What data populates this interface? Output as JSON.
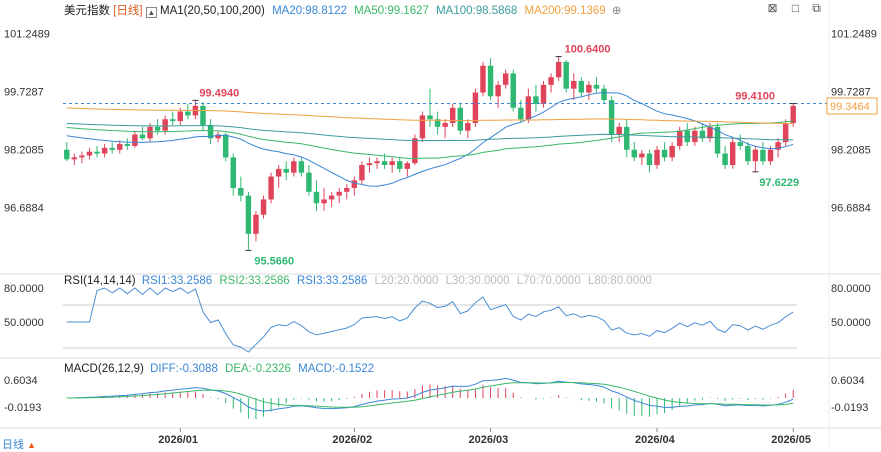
{
  "header": {
    "name": "美元指数",
    "period": "[日线]",
    "ma_label": "MA1(20,50,100,200)",
    "ma20": "MA20:98.8122",
    "ma50": "MA50:99.1627",
    "ma100": "MA100:98.5868",
    "ma200": "MA200:99.1369"
  },
  "colors": {
    "up": "#e0445a",
    "down": "#2eb872",
    "ma20": "#3a86d6",
    "ma50": "#3bb86a",
    "ma100": "#3a9a9a",
    "ma200": "#f0a040",
    "rsi": "#4d8fd6",
    "dif": "#3a86d6",
    "dea": "#3bb86a"
  },
  "icons": [
    "collapse-icon",
    "close-icon",
    "maximize-icon",
    "restore-icon",
    "settings-icon",
    "lock-icon"
  ],
  "rsi_header": {
    "label": "RSI(14,14,14)",
    "rsi1": "RSI1:33.2586",
    "rsi2": "RSI2:33.2586",
    "rsi3": "RSI3:33.2586",
    "l20": "L20:20.0000",
    "l30": "L30:30.0000",
    "l70": "L70:70.0000",
    "l80": "L80:80.0000"
  },
  "macd_header": {
    "label": "MACD(26,12,9)",
    "dif": "DIFF:-0.3088",
    "dea": "DEA:-0.2326",
    "macd": "MACD:-0.1522"
  },
  "bottom_label": "日线",
  "chart_data": {
    "type": "candlestick",
    "price_axis": {
      "ticks": [
        "101.2489",
        "99.7287",
        "98.2085",
        "96.6884"
      ],
      "ylim": [
        95.0,
        101.65
      ]
    },
    "current_price": "99.3464",
    "annotations": [
      {
        "text": "99.4940",
        "value": 99.494
      },
      {
        "text": "95.5660",
        "value": 95.566
      },
      {
        "text": "100.6400",
        "value": 100.64
      },
      {
        "text": "99.4100",
        "value": 99.41
      },
      {
        "text": "97.6229",
        "value": 97.6229
      }
    ],
    "x_labels": [
      "2026/01",
      "2026/02",
      "2026/03",
      "2026/04",
      "2026/05"
    ],
    "candles": [
      [
        98.2,
        98.4,
        97.9,
        97.95
      ],
      [
        97.95,
        98.1,
        97.8,
        98.0
      ],
      [
        98.0,
        98.15,
        97.85,
        98.05
      ],
      [
        98.05,
        98.25,
        97.95,
        98.15
      ],
      [
        98.15,
        98.3,
        98.0,
        98.1
      ],
      [
        98.1,
        98.35,
        98.0,
        98.25
      ],
      [
        98.25,
        98.4,
        98.1,
        98.2
      ],
      [
        98.2,
        98.45,
        98.1,
        98.35
      ],
      [
        98.35,
        98.5,
        98.2,
        98.3
      ],
      [
        98.3,
        98.7,
        98.25,
        98.6
      ],
      [
        98.6,
        98.8,
        98.45,
        98.5
      ],
      [
        98.5,
        98.9,
        98.4,
        98.8
      ],
      [
        98.8,
        99.0,
        98.6,
        98.7
      ],
      [
        98.7,
        99.1,
        98.6,
        99.0
      ],
      [
        99.0,
        99.2,
        98.85,
        98.95
      ],
      [
        98.95,
        99.3,
        98.85,
        99.2
      ],
      [
        99.2,
        99.4,
        99.0,
        99.1
      ],
      [
        99.1,
        99.494,
        99.0,
        99.35
      ],
      [
        99.35,
        99.45,
        98.7,
        98.85
      ],
      [
        98.85,
        99.0,
        98.35,
        98.5
      ],
      [
        98.5,
        98.7,
        98.4,
        98.6
      ],
      [
        98.6,
        98.65,
        97.9,
        98.0
      ],
      [
        98.0,
        98.1,
        97.0,
        97.2
      ],
      [
        97.2,
        97.5,
        96.85,
        97.0
      ],
      [
        97.0,
        97.1,
        95.566,
        96.0
      ],
      [
        96.0,
        96.6,
        95.8,
        96.5
      ],
      [
        96.5,
        97.0,
        96.4,
        96.9
      ],
      [
        96.9,
        97.6,
        96.8,
        97.5
      ],
      [
        97.5,
        97.8,
        97.2,
        97.7
      ],
      [
        97.7,
        97.9,
        97.4,
        97.6
      ],
      [
        97.6,
        98.0,
        97.5,
        97.9
      ],
      [
        97.9,
        98.0,
        97.5,
        97.6
      ],
      [
        97.6,
        97.8,
        97.0,
        97.1
      ],
      [
        97.1,
        97.4,
        96.6,
        96.8
      ],
      [
        96.8,
        97.2,
        96.6,
        96.9
      ],
      [
        96.9,
        97.1,
        96.7,
        97.0
      ],
      [
        97.0,
        97.2,
        96.8,
        97.1
      ],
      [
        97.1,
        97.3,
        96.9,
        97.2
      ],
      [
        97.2,
        97.5,
        97.0,
        97.4
      ],
      [
        97.4,
        97.9,
        97.3,
        97.8
      ],
      [
        97.8,
        98.0,
        97.6,
        97.85
      ],
      [
        97.85,
        98.0,
        97.7,
        97.9
      ],
      [
        97.9,
        98.1,
        97.7,
        97.8
      ],
      [
        97.8,
        98.0,
        97.6,
        97.9
      ],
      [
        97.9,
        98.0,
        97.6,
        97.7
      ],
      [
        97.7,
        97.9,
        97.5,
        97.85
      ],
      [
        97.85,
        98.6,
        97.8,
        98.5
      ],
      [
        98.5,
        99.2,
        98.4,
        99.1
      ],
      [
        99.1,
        99.8,
        98.8,
        99.0
      ],
      [
        99.0,
        99.2,
        98.6,
        98.8
      ],
      [
        98.8,
        99.0,
        98.5,
        98.9
      ],
      [
        98.9,
        99.4,
        98.8,
        99.3
      ],
      [
        99.3,
        99.4,
        98.6,
        98.7
      ],
      [
        98.7,
        99.0,
        98.5,
        98.9
      ],
      [
        98.9,
        99.8,
        98.8,
        99.7
      ],
      [
        99.7,
        100.5,
        99.6,
        100.4
      ],
      [
        100.4,
        100.6,
        99.5,
        99.6
      ],
      [
        99.6,
        100.0,
        99.3,
        99.9
      ],
      [
        99.9,
        100.3,
        99.8,
        100.2
      ],
      [
        100.2,
        100.3,
        99.2,
        99.3
      ],
      [
        99.3,
        99.5,
        98.9,
        99.0
      ],
      [
        99.0,
        99.8,
        98.9,
        99.6
      ],
      [
        99.6,
        99.9,
        99.2,
        99.4
      ],
      [
        99.4,
        100.0,
        99.3,
        99.9
      ],
      [
        99.9,
        100.2,
        99.7,
        100.1
      ],
      [
        100.1,
        100.64,
        100.0,
        100.5
      ],
      [
        100.5,
        100.55,
        99.7,
        99.8
      ],
      [
        99.8,
        100.2,
        99.5,
        100.0
      ],
      [
        100.0,
        100.1,
        99.6,
        99.7
      ],
      [
        99.7,
        100.0,
        99.5,
        99.9
      ],
      [
        99.9,
        100.1,
        99.7,
        99.8
      ],
      [
        99.8,
        99.9,
        99.4,
        99.5
      ],
      [
        99.5,
        99.6,
        98.4,
        98.6
      ],
      [
        98.6,
        98.9,
        98.4,
        98.8
      ],
      [
        98.8,
        99.0,
        98.0,
        98.2
      ],
      [
        98.2,
        98.4,
        97.9,
        98.0
      ],
      [
        98.0,
        98.2,
        97.8,
        98.1
      ],
      [
        98.1,
        98.2,
        97.6,
        97.8
      ],
      [
        97.8,
        98.3,
        97.7,
        98.2
      ],
      [
        98.2,
        98.4,
        97.9,
        98.0
      ],
      [
        98.0,
        98.4,
        97.9,
        98.3
      ],
      [
        98.3,
        98.8,
        98.2,
        98.7
      ],
      [
        98.7,
        98.9,
        98.3,
        98.4
      ],
      [
        98.4,
        98.8,
        98.3,
        98.7
      ],
      [
        98.7,
        98.9,
        98.4,
        98.5
      ],
      [
        98.5,
        98.9,
        98.4,
        98.8
      ],
      [
        98.8,
        98.9,
        98.0,
        98.1
      ],
      [
        98.1,
        98.3,
        97.7,
        97.8
      ],
      [
        97.8,
        98.5,
        97.7,
        98.4
      ],
      [
        98.4,
        98.6,
        98.2,
        98.3
      ],
      [
        98.3,
        98.4,
        97.8,
        97.9
      ],
      [
        97.9,
        98.3,
        97.6229,
        98.2
      ],
      [
        98.2,
        98.4,
        97.8,
        97.9
      ],
      [
        97.9,
        98.3,
        97.8,
        98.2
      ],
      [
        98.2,
        98.5,
        98.0,
        98.4
      ],
      [
        98.4,
        99.0,
        98.3,
        98.9
      ],
      [
        98.9,
        99.41,
        98.8,
        99.35
      ]
    ]
  }
}
